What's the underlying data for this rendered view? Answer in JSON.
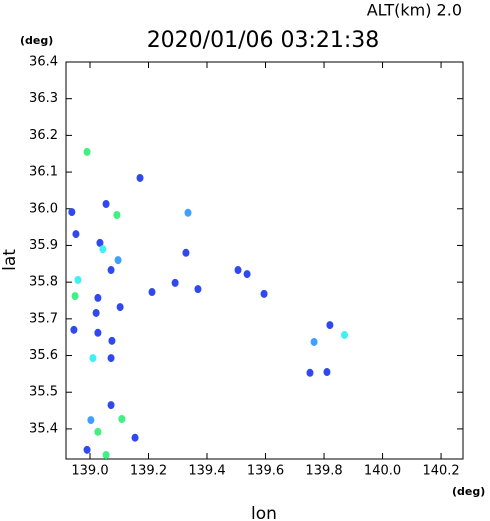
{
  "chart_data": {
    "type": "scatter",
    "title": "2020/01/06 03:21:38",
    "subtitle": "ALT(km) 2.0",
    "x_label": "lon",
    "y_label": "lat",
    "x_unit": "(deg)",
    "y_unit": "(deg)",
    "xlim": [
      138.918,
      140.275
    ],
    "ylim": [
      35.318,
      36.4
    ],
    "xticks": [
      {
        "value": 139.0,
        "label": "139.0"
      },
      139.2,
      139.4,
      139.6,
      139.8,
      {
        "value": 140.0,
        "label": "140.0"
      },
      140.2
    ],
    "yticks": [
      36.4,
      36.3,
      36.2,
      36.1,
      {
        "value": 36.0,
        "label": "36.0"
      },
      35.9,
      35.8,
      35.7,
      35.6,
      35.5,
      35.4
    ],
    "series": [
      {
        "color": "#3048f0",
        "x": [
          139.055,
          139.171,
          138.952,
          139.034,
          139.027,
          139.021,
          138.945,
          139.027,
          139.075,
          139.072,
          139.072,
          139.154,
          138.99,
          139.212,
          139.328,
          139.369,
          139.291,
          139.506,
          139.595,
          139.537,
          139.752,
          139.81,
          139.82,
          139.103,
          139.072,
          138.938
        ],
        "y": [
          36.013,
          36.084,
          35.931,
          35.907,
          35.757,
          35.716,
          35.67,
          35.662,
          35.64,
          35.593,
          35.465,
          35.376,
          35.343,
          35.773,
          35.88,
          35.781,
          35.798,
          35.833,
          35.768,
          35.822,
          35.553,
          35.555,
          35.683,
          35.732,
          35.833,
          35.991
        ]
      },
      {
        "color": "#40a0ff",
        "x": [
          139.003,
          139.766,
          139.096,
          139.335
        ],
        "y": [
          35.424,
          35.637,
          35.86,
          35.989
        ]
      },
      {
        "color": "#40f0f0",
        "x": [
          139.044,
          138.959,
          139.01,
          139.87
        ],
        "y": [
          35.89,
          35.806,
          35.593,
          35.656
        ]
      },
      {
        "color": "#40f080",
        "x": [
          138.99,
          139.092,
          138.949,
          139.027,
          139.109,
          139.055
        ],
        "y": [
          36.155,
          35.983,
          35.762,
          35.392,
          35.427,
          35.329
        ]
      }
    ]
  }
}
